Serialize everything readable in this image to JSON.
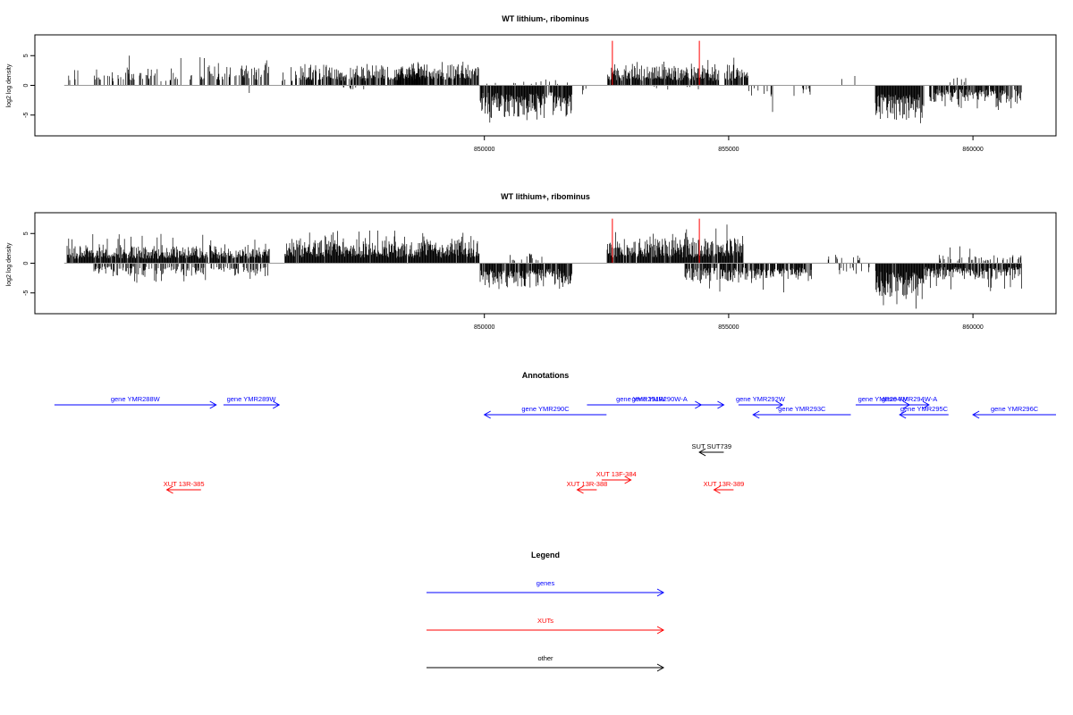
{
  "figure": {
    "colors": {
      "background": "#ffffff",
      "bar": "#000000",
      "baseline": "#999999",
      "highlight": "#ff0000",
      "gene": "#0000ff",
      "xut": "#ff0000",
      "other": "#000000"
    }
  },
  "chart_data": [
    {
      "type": "bar",
      "title": "WT lithium-, ribominus",
      "ylabel": "log2 log density",
      "xlabel": "",
      "xlim": [
        840800,
        861700
      ],
      "ylim": [
        -8.5,
        8.5
      ],
      "x_ticks": [
        {
          "value": 850000,
          "label": "850000"
        },
        {
          "value": 855000,
          "label": "855000"
        },
        {
          "value": 860000,
          "label": "860000"
        }
      ],
      "y_ticks": [
        {
          "value": 5,
          "label": "5"
        },
        {
          "value": 0,
          "label": "0"
        },
        {
          "value": -5,
          "label": "-5"
        }
      ],
      "baseline_range": [
        841400,
        861000
      ],
      "highlight_positions": [
        852620,
        854400
      ],
      "highlight_height": 7.5,
      "grid": false,
      "regions": [
        {
          "start": 841450,
          "end": 841800,
          "strand": "+",
          "mean": 1.4,
          "max": 3,
          "density": 0.15
        },
        {
          "start": 842000,
          "end": 844300,
          "strand": "+",
          "mean": 1.8,
          "max": 5,
          "density": 0.3
        },
        {
          "start": 844300,
          "end": 845600,
          "strand": "+",
          "mean": 2.2,
          "max": 4.5,
          "density": 0.55
        },
        {
          "start": 844700,
          "end": 845200,
          "strand": "-",
          "mean": 1.0,
          "max": 3,
          "density": 0.1
        },
        {
          "start": 845800,
          "end": 846200,
          "strand": "+",
          "mean": 1.6,
          "max": 3.5,
          "density": 0.3
        },
        {
          "start": 846200,
          "end": 848800,
          "strand": "+",
          "mean": 2.1,
          "max": 3.6,
          "density": 0.65
        },
        {
          "start": 847000,
          "end": 847600,
          "strand": "-",
          "mean": 0.6,
          "max": 1.5,
          "density": 0.08
        },
        {
          "start": 848200,
          "end": 849900,
          "strand": "+",
          "mean": 2.3,
          "max": 4.2,
          "density": 0.85
        },
        {
          "start": 849900,
          "end": 851800,
          "strand": "-",
          "mean": 3.3,
          "max": 6.3,
          "density": 0.95
        },
        {
          "start": 850000,
          "end": 851700,
          "strand": "+",
          "mean": 0.6,
          "max": 1.5,
          "density": 0.08
        },
        {
          "start": 852000,
          "end": 852100,
          "strand": "-",
          "mean": 1.2,
          "max": 1.5,
          "density": 0.3
        },
        {
          "start": 852500,
          "end": 854800,
          "strand": "+",
          "mean": 2.1,
          "max": 4.3,
          "density": 0.9
        },
        {
          "start": 853000,
          "end": 854500,
          "strand": "-",
          "mean": 0.5,
          "max": 1.2,
          "density": 0.06
        },
        {
          "start": 854900,
          "end": 855400,
          "strand": "+",
          "mean": 2.2,
          "max": 5,
          "density": 0.85
        },
        {
          "start": 855400,
          "end": 856800,
          "strand": "-",
          "mean": 1.2,
          "max": 4.8,
          "density": 0.12
        },
        {
          "start": 857300,
          "end": 857700,
          "strand": "+",
          "mean": 1.1,
          "max": 2.5,
          "density": 0.08
        },
        {
          "start": 858000,
          "end": 859000,
          "strand": "-",
          "mean": 3.6,
          "max": 7,
          "density": 0.95
        },
        {
          "start": 859100,
          "end": 861000,
          "strand": "-",
          "mean": 1.9,
          "max": 4.2,
          "density": 0.75
        },
        {
          "start": 859300,
          "end": 860000,
          "strand": "+",
          "mean": 0.8,
          "max": 2.2,
          "density": 0.06
        }
      ]
    },
    {
      "type": "bar",
      "title": "WT lithium+, ribominus",
      "ylabel": "log2 log density",
      "xlabel": "",
      "xlim": [
        840800,
        861700
      ],
      "ylim": [
        -8.5,
        8.5
      ],
      "x_ticks": [
        {
          "value": 850000,
          "label": "850000"
        },
        {
          "value": 855000,
          "label": "855000"
        },
        {
          "value": 860000,
          "label": "860000"
        }
      ],
      "y_ticks": [
        {
          "value": 5,
          "label": "5"
        },
        {
          "value": 0,
          "label": "0"
        },
        {
          "value": -5,
          "label": "-5"
        }
      ],
      "baseline_range": [
        841400,
        861000
      ],
      "highlight_positions": [
        852620,
        854400
      ],
      "highlight_height": 7.5,
      "grid": false,
      "regions": [
        {
          "start": 841450,
          "end": 844300,
          "strand": "+",
          "mean": 2.0,
          "max": 5,
          "density": 0.95
        },
        {
          "start": 842000,
          "end": 844300,
          "strand": "-",
          "mean": 1.4,
          "max": 3.3,
          "density": 0.45
        },
        {
          "start": 844300,
          "end": 845600,
          "strand": "+",
          "mean": 2.0,
          "max": 4.5,
          "density": 0.85
        },
        {
          "start": 844400,
          "end": 845600,
          "strand": "-",
          "mean": 1.4,
          "max": 3.2,
          "density": 0.45
        },
        {
          "start": 845900,
          "end": 849900,
          "strand": "+",
          "mean": 2.5,
          "max": 5.5,
          "density": 0.95
        },
        {
          "start": 849900,
          "end": 851800,
          "strand": "-",
          "mean": 2.6,
          "max": 5.5,
          "density": 0.9
        },
        {
          "start": 850400,
          "end": 851200,
          "strand": "+",
          "mean": 1.0,
          "max": 3,
          "density": 0.15
        },
        {
          "start": 852500,
          "end": 854800,
          "strand": "+",
          "mean": 2.6,
          "max": 6,
          "density": 0.95
        },
        {
          "start": 854800,
          "end": 855300,
          "strand": "+",
          "mean": 2.8,
          "max": 7.5,
          "density": 0.9
        },
        {
          "start": 854100,
          "end": 856700,
          "strand": "-",
          "mean": 2.0,
          "max": 5,
          "density": 0.8
        },
        {
          "start": 857000,
          "end": 857700,
          "strand": "+",
          "mean": 1.0,
          "max": 2.5,
          "density": 0.12
        },
        {
          "start": 858000,
          "end": 859000,
          "strand": "-",
          "mean": 3.8,
          "max": 8,
          "density": 0.98
        },
        {
          "start": 857200,
          "end": 858100,
          "strand": "-",
          "mean": 1.2,
          "max": 3,
          "density": 0.2
        },
        {
          "start": 859000,
          "end": 861000,
          "strand": "-",
          "mean": 1.8,
          "max": 4.8,
          "density": 0.9
        },
        {
          "start": 859300,
          "end": 861000,
          "strand": "+",
          "mean": 1.0,
          "max": 3,
          "density": 0.3
        }
      ]
    }
  ],
  "annotations": {
    "title": "Annotations",
    "features": [
      {
        "label": "gene YMR288W",
        "start": 841200,
        "end": 844510,
        "strand": "+",
        "row": 0,
        "type": "gene"
      },
      {
        "label": "gene YMR289W",
        "start": 844660,
        "end": 845800,
        "strand": "+",
        "row": 0,
        "type": "gene"
      },
      {
        "label": "gene YMR290C",
        "start": 850000,
        "end": 852500,
        "strand": "-",
        "row": 1,
        "type": "gene"
      },
      {
        "label": "gene YMR290W-A",
        "start": 852730,
        "end": 854440,
        "strand": "+",
        "row": 0,
        "type": "gene"
      },
      {
        "label": "gene YMR291W",
        "start": 852100,
        "end": 854900,
        "strand": "+",
        "row": 0,
        "type": "gene",
        "label_x": 853200
      },
      {
        "label": "gene YMR292W",
        "start": 855200,
        "end": 856100,
        "strand": "+",
        "row": 0,
        "type": "gene"
      },
      {
        "label": "gene YMR293C",
        "start": 855500,
        "end": 857500,
        "strand": "-",
        "row": 1,
        "type": "gene"
      },
      {
        "label": "gene YMR294W",
        "start": 857600,
        "end": 858700,
        "strand": "+",
        "row": 0,
        "type": "gene"
      },
      {
        "label": "gene YMR294W-A",
        "start": 858300,
        "end": 859100,
        "strand": "+",
        "row": 0,
        "type": "gene"
      },
      {
        "label": "gene YMR295C",
        "start": 858500,
        "end": 859500,
        "strand": "-",
        "row": 1,
        "type": "gene"
      },
      {
        "label": "gene YMR296C",
        "start": 860000,
        "end": 861700,
        "strand": "-",
        "row": 1,
        "type": "gene"
      },
      {
        "label": "SUT SUT739",
        "start": 854400,
        "end": 854900,
        "strand": "-",
        "row": 0,
        "type": "other"
      },
      {
        "label": "XUT 13F-384",
        "start": 852400,
        "end": 853000,
        "strand": "+",
        "row": 0,
        "type": "xut"
      },
      {
        "label": "XUT 13R-385",
        "start": 843500,
        "end": 844200,
        "strand": "-",
        "row": 1,
        "type": "xut"
      },
      {
        "label": "XUT 13R-388",
        "start": 851900,
        "end": 852300,
        "strand": "-",
        "row": 1,
        "type": "xut"
      },
      {
        "label": "XUT 13R-389",
        "start": 854700,
        "end": 855100,
        "strand": "-",
        "row": 1,
        "type": "xut"
      }
    ]
  },
  "legend": {
    "title": "Legend",
    "items": [
      {
        "label": "genes",
        "type": "gene"
      },
      {
        "label": "XUTs",
        "type": "xut"
      },
      {
        "label": "other",
        "type": "other"
      }
    ]
  }
}
